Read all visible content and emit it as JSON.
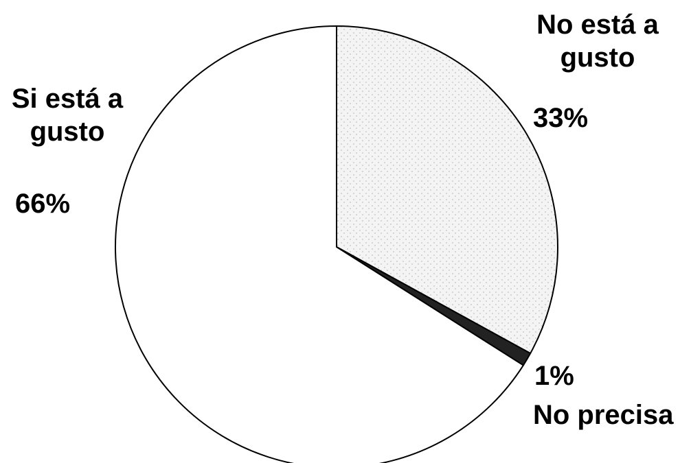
{
  "chart_data": {
    "type": "pie",
    "title": "",
    "slices": [
      {
        "name_lines": [
          "No está a",
          "gusto"
        ],
        "value": 33,
        "value_label": "33%",
        "pattern": "dotted"
      },
      {
        "name_lines": [
          "No precisa"
        ],
        "value": 1,
        "value_label": "1%",
        "pattern": "solid-dark"
      },
      {
        "name_lines": [
          "Si está a",
          "gusto"
        ],
        "value": 66,
        "value_label": "66%",
        "pattern": "blank"
      }
    ],
    "start": "12 o'clock",
    "direction": "clockwise",
    "legend": "none"
  },
  "colors": {
    "outline": "#000000",
    "dotted_fill": "#f4f4f4",
    "dot_color": "#8a8a8a",
    "dark_fill": "#222222",
    "blank_fill": "#ffffff"
  }
}
